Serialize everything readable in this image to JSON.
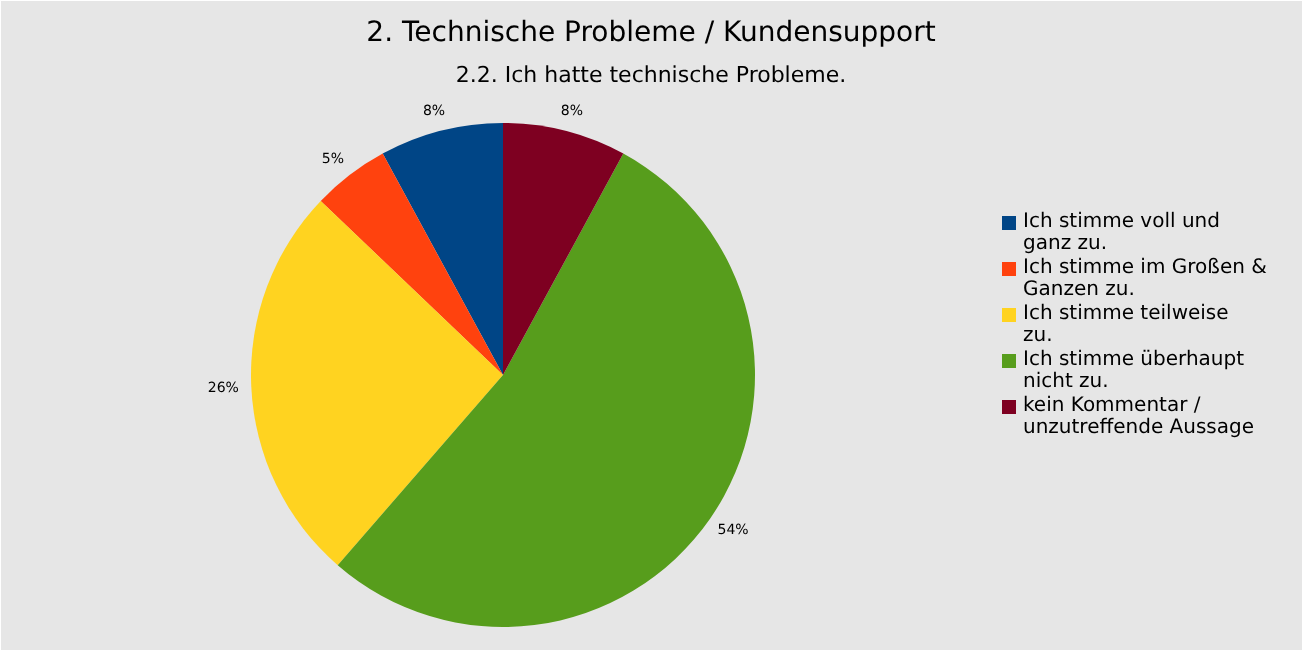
{
  "chart_data": {
    "type": "pie",
    "title": "2. Technische Probleme / Kundensupport",
    "subtitle": "2.2. Ich hatte technische Probleme.",
    "categories": [
      "Ich stimme voll und ganz zu.",
      "Ich stimme im Großen & Ganzen zu.",
      "Ich stimme teilweise zu.",
      "Ich stimme überhaupt nicht zu.",
      "kein Kommentar / unzutreffende Aussage"
    ],
    "values": [
      8,
      5,
      26,
      54,
      8
    ],
    "colors": [
      "#004586",
      "#ff420e",
      "#ffd320",
      "#579d1c",
      "#7e0021"
    ],
    "value_labels": [
      "8%",
      "5%",
      "26%",
      "54%",
      "8%"
    ],
    "legend": "right"
  }
}
